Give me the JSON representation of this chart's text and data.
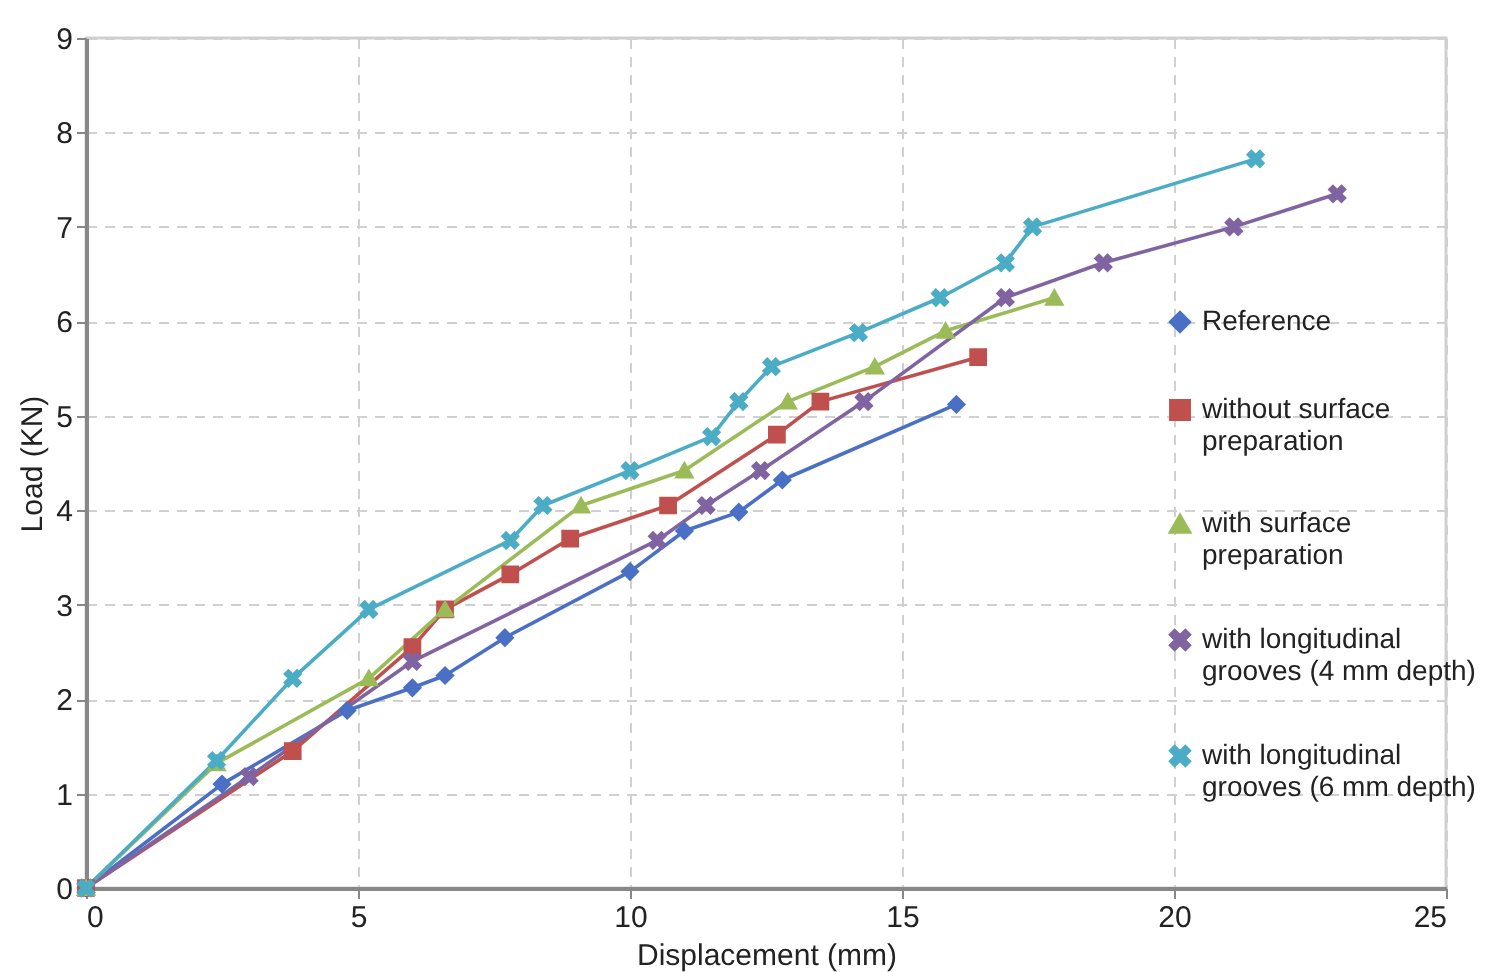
{
  "chart_data": {
    "type": "line",
    "xlabel": "Displacement (mm)",
    "ylabel": "Load (KN)",
    "xlim": [
      0,
      25
    ],
    "ylim": [
      0,
      9
    ],
    "xticks": [
      0,
      5,
      10,
      15,
      20,
      25
    ],
    "yticks": [
      0,
      1,
      2,
      3,
      4,
      5,
      6,
      7,
      8,
      9
    ],
    "grid": true,
    "legend": "right",
    "line_style": "solid",
    "series": [
      {
        "name": "Reference",
        "color": "#4a70c6",
        "marker": "diamond",
        "x": [
          0,
          2.5,
          4.8,
          6,
          6.6,
          7.7,
          10,
          11,
          12,
          12.8,
          16
        ],
        "values": [
          0,
          1.1,
          1.88,
          2.12,
          2.25,
          2.65,
          3.35,
          3.78,
          3.98,
          4.32,
          5.12
        ]
      },
      {
        "name": "without surface preparation",
        "color": "#c0504d",
        "marker": "square",
        "x": [
          0,
          3.8,
          6,
          6.6,
          7.8,
          8.9,
          10.7,
          12.7,
          13.5,
          16.4
        ],
        "values": [
          0,
          1.45,
          2.55,
          2.95,
          3.32,
          3.7,
          4.05,
          4.8,
          5.15,
          5.62
        ]
      },
      {
        "name": "with surface preparation",
        "color": "#9bbb59",
        "marker": "triangle",
        "x": [
          0,
          2.4,
          5.2,
          6.6,
          9.1,
          11,
          12.9,
          14.5,
          15.8,
          17.8
        ],
        "values": [
          0,
          1.32,
          2.22,
          2.95,
          4.05,
          4.42,
          5.15,
          5.52,
          5.9,
          6.25
        ]
      },
      {
        "name": "with longitudinal grooves (4 mm depth)",
        "color": "#8064a2",
        "marker": "cross",
        "x": [
          0,
          3,
          6,
          10.5,
          11.4,
          12.4,
          14.3,
          16.9,
          18.7,
          21.1,
          23
        ],
        "values": [
          0,
          1.18,
          2.4,
          3.68,
          4.05,
          4.42,
          5.15,
          6.25,
          6.62,
          7,
          7.35
        ]
      },
      {
        "name": "with longitudinal grooves (6 mm depth)",
        "color": "#4bacc6",
        "marker": "cross",
        "x": [
          0,
          2.4,
          3.8,
          5.2,
          7.8,
          8.4,
          10,
          11.5,
          12,
          12.6,
          14.2,
          15.7,
          16.9,
          17.4,
          21.5
        ],
        "values": [
          0,
          1.35,
          2.22,
          2.95,
          3.68,
          4.05,
          4.42,
          4.78,
          5.15,
          5.52,
          5.88,
          6.25,
          6.62,
          7,
          7.72
        ]
      }
    ]
  }
}
